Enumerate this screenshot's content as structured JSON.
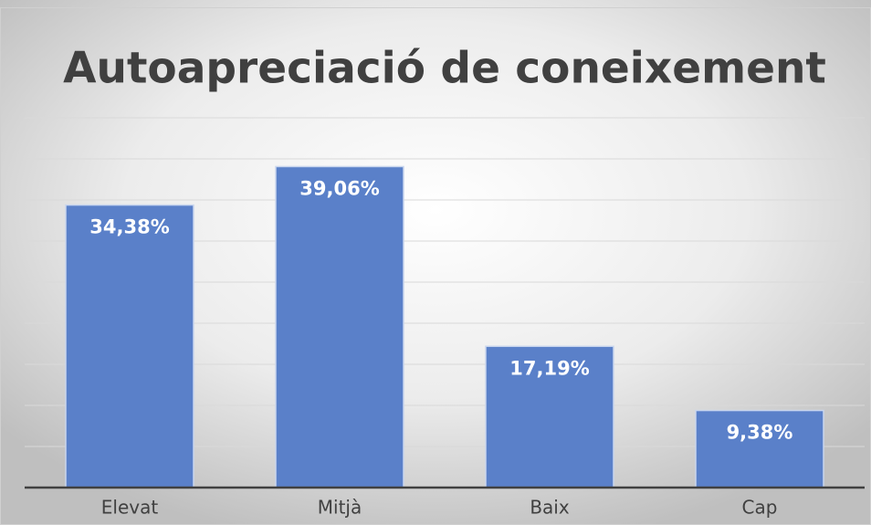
{
  "chart_data": {
    "type": "bar",
    "title": "Autoapreciació de coneixement",
    "categories": [
      "Elevat",
      "Mitjà",
      "Baix",
      "Cap"
    ],
    "values": [
      34.38,
      39.06,
      17.19,
      9.38
    ],
    "value_labels": [
      "34,38%",
      "39,06%",
      "17,19%",
      "9,38%"
    ],
    "color": "#5a80c9",
    "ylim": [
      0,
      45
    ],
    "yticks": [
      0,
      5,
      10,
      15,
      20,
      25,
      30,
      35,
      40,
      45
    ],
    "grid": true
  }
}
